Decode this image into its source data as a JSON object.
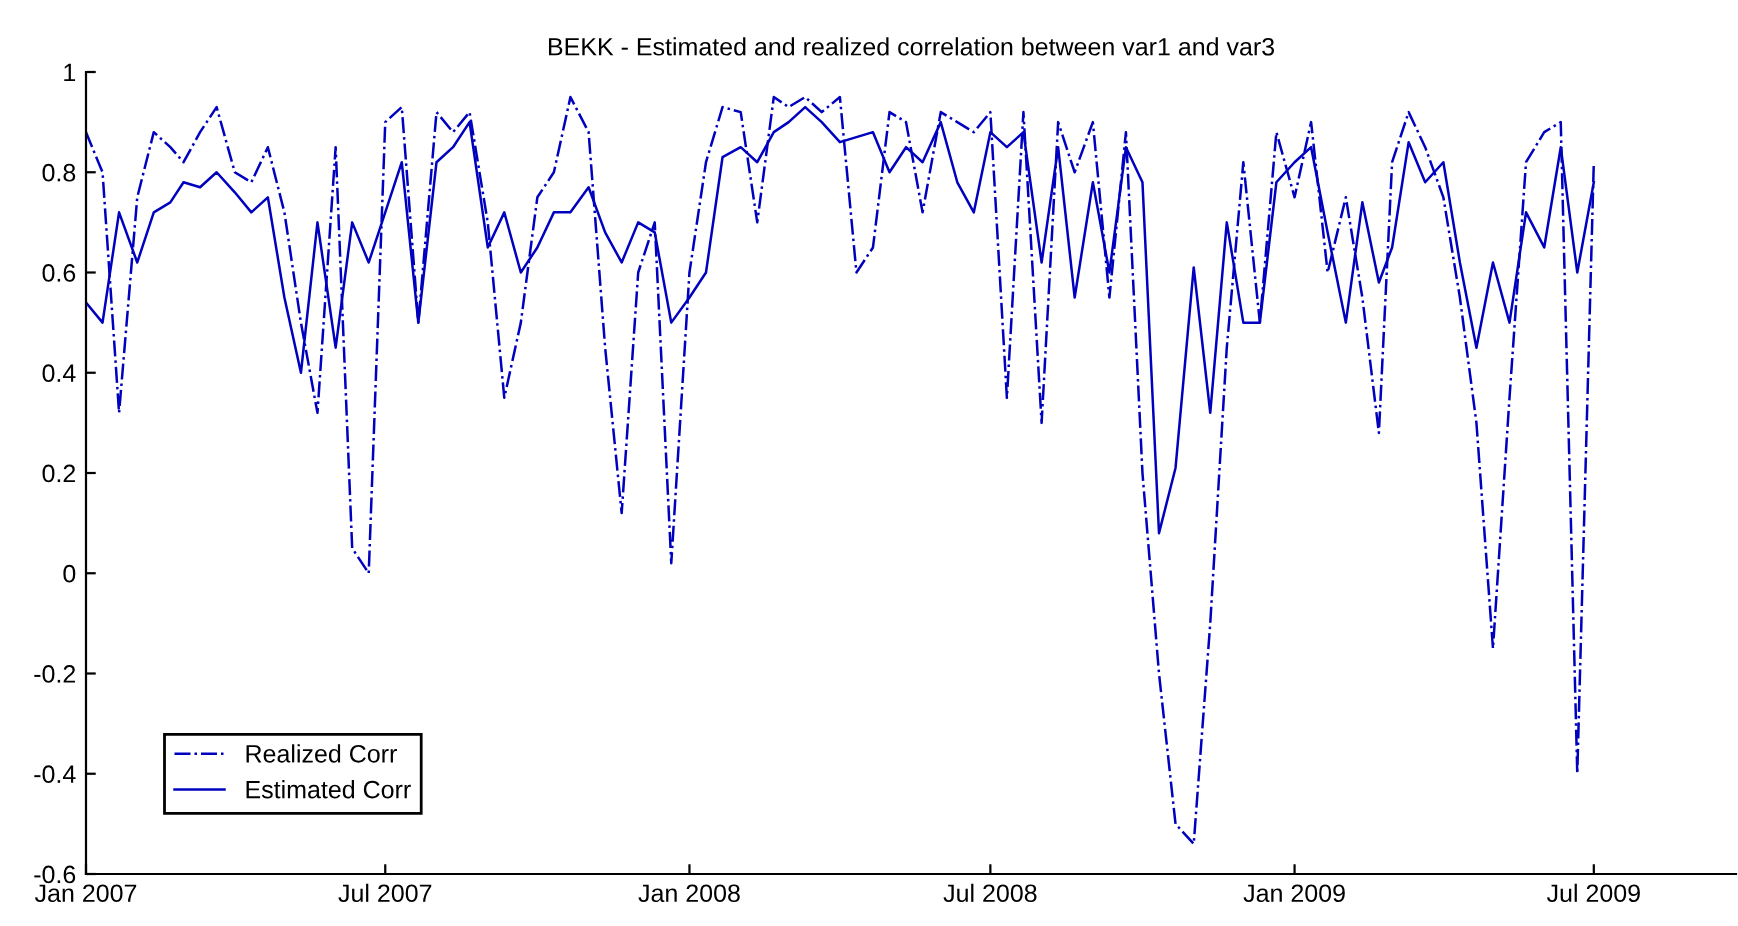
{
  "chart_data": {
    "type": "line",
    "title": "BEKK - Estimated and realized correlation between var1 and var3",
    "x": [
      "2007-01-01",
      "2007-01-11",
      "2007-01-21",
      "2007-02-01",
      "2007-02-11",
      "2007-02-21",
      "2007-03-01",
      "2007-03-11",
      "2007-03-21",
      "2007-04-01",
      "2007-04-11",
      "2007-04-21",
      "2007-05-01",
      "2007-05-11",
      "2007-05-21",
      "2007-06-01",
      "2007-06-11",
      "2007-06-21",
      "2007-07-01",
      "2007-07-11",
      "2007-07-21",
      "2007-08-01",
      "2007-08-11",
      "2007-08-21",
      "2007-09-01",
      "2007-09-11",
      "2007-09-21",
      "2007-10-01",
      "2007-10-11",
      "2007-10-21",
      "2007-11-01",
      "2007-11-11",
      "2007-11-21",
      "2007-12-01",
      "2007-12-11",
      "2007-12-21",
      "2008-01-01",
      "2008-01-11",
      "2008-01-21",
      "2008-02-01",
      "2008-02-11",
      "2008-02-21",
      "2008-03-01",
      "2008-03-11",
      "2008-03-21",
      "2008-04-01",
      "2008-04-11",
      "2008-04-21",
      "2008-05-01",
      "2008-05-11",
      "2008-05-21",
      "2008-06-01",
      "2008-06-11",
      "2008-06-21",
      "2008-07-01",
      "2008-07-11",
      "2008-07-21",
      "2008-08-01",
      "2008-08-11",
      "2008-08-21",
      "2008-09-01",
      "2008-09-11",
      "2008-09-21",
      "2008-10-01",
      "2008-10-11",
      "2008-10-21",
      "2008-11-01",
      "2008-11-11",
      "2008-11-21",
      "2008-12-01",
      "2008-12-11",
      "2008-12-21",
      "2009-01-01",
      "2009-01-11",
      "2009-01-21",
      "2009-02-01",
      "2009-02-11",
      "2009-02-21",
      "2009-03-01",
      "2009-03-11",
      "2009-03-21",
      "2009-04-01",
      "2009-04-11",
      "2009-04-21",
      "2009-05-01",
      "2009-05-11",
      "2009-05-21",
      "2009-06-01",
      "2009-06-11",
      "2009-06-21",
      "2009-07-01"
    ],
    "series": [
      {
        "name": "Realized Corr",
        "color": "#0000bf",
        "line_style": "dashdot",
        "values": [
          0.88,
          0.8,
          0.32,
          0.75,
          0.88,
          0.85,
          0.82,
          0.88,
          0.93,
          0.8,
          0.78,
          0.85,
          0.72,
          0.5,
          0.32,
          0.85,
          0.05,
          0.0,
          0.9,
          0.93,
          0.5,
          0.92,
          0.88,
          0.92,
          0.7,
          0.35,
          0.5,
          0.75,
          0.8,
          0.95,
          0.88,
          0.45,
          0.12,
          0.6,
          0.7,
          0.02,
          0.6,
          0.82,
          0.93,
          0.92,
          0.7,
          0.95,
          0.93,
          0.95,
          0.92,
          0.95,
          0.6,
          0.65,
          0.92,
          0.9,
          0.72,
          0.92,
          0.9,
          0.88,
          0.92,
          0.35,
          0.92,
          0.3,
          0.9,
          0.8,
          0.9,
          0.55,
          0.88,
          0.2,
          -0.2,
          -0.5,
          -0.54,
          -0.1,
          0.45,
          0.82,
          0.5,
          0.88,
          0.75,
          0.9,
          0.6,
          0.75,
          0.55,
          0.28,
          0.82,
          0.92,
          0.85,
          0.75,
          0.55,
          0.3,
          -0.15,
          0.35,
          0.82,
          0.88,
          0.9,
          -0.4,
          0.82
        ]
      },
      {
        "name": "Estimated Corr",
        "color": "#0000bf",
        "line_style": "solid",
        "values": [
          0.54,
          0.5,
          0.72,
          0.62,
          0.72,
          0.74,
          0.78,
          0.77,
          0.8,
          0.76,
          0.72,
          0.75,
          0.55,
          0.4,
          0.7,
          0.45,
          0.7,
          0.62,
          0.72,
          0.82,
          0.5,
          0.82,
          0.85,
          0.9,
          0.65,
          0.72,
          0.6,
          0.65,
          0.72,
          0.72,
          0.77,
          0.68,
          0.62,
          0.7,
          0.68,
          0.5,
          0.55,
          0.6,
          0.83,
          0.85,
          0.82,
          0.88,
          0.9,
          0.93,
          0.9,
          0.86,
          0.87,
          0.88,
          0.8,
          0.85,
          0.82,
          0.9,
          0.78,
          0.72,
          0.88,
          0.85,
          0.88,
          0.62,
          0.85,
          0.55,
          0.78,
          0.6,
          0.85,
          0.78,
          0.08,
          0.21,
          0.61,
          0.32,
          0.7,
          0.5,
          0.5,
          0.78,
          0.82,
          0.85,
          0.68,
          0.5,
          0.74,
          0.58,
          0.65,
          0.86,
          0.78,
          0.82,
          0.62,
          0.45,
          0.62,
          0.5,
          0.72,
          0.65,
          0.85,
          0.6,
          0.78
        ]
      }
    ],
    "xlim": [
      "2007-01-01",
      "2009-09-25"
    ],
    "xticks": [
      {
        "value": "2007-01-01",
        "label": "Jan 2007"
      },
      {
        "value": "2007-07-01",
        "label": "Jul 2007"
      },
      {
        "value": "2008-01-01",
        "label": "Jan 2008"
      },
      {
        "value": "2008-07-01",
        "label": "Jul 2008"
      },
      {
        "value": "2009-01-01",
        "label": "Jan 2009"
      },
      {
        "value": "2009-07-01",
        "label": "Jul 2009"
      }
    ],
    "ylim": [
      -0.6,
      1
    ],
    "yticks": [
      -0.6,
      -0.4,
      -0.2,
      0,
      0.2,
      0.4,
      0.6,
      0.8,
      1
    ],
    "legend": "bottom left",
    "grid": false
  }
}
